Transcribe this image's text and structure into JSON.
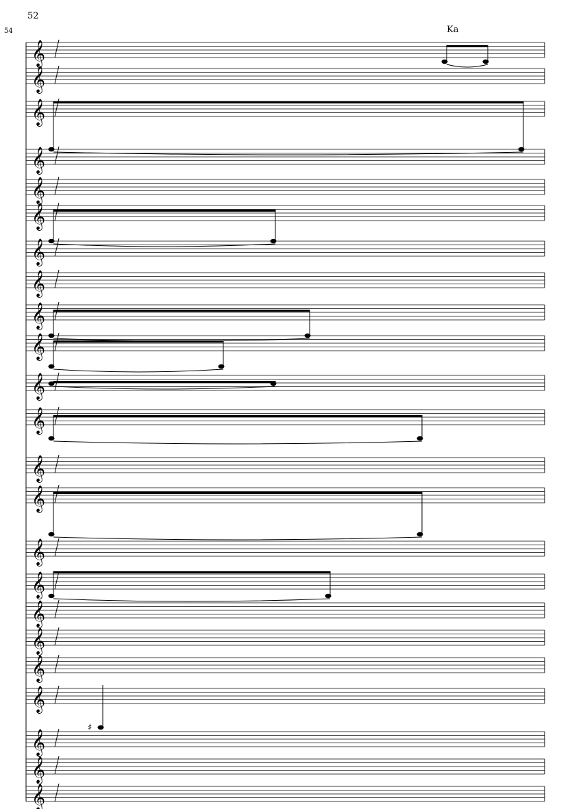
{
  "score": {
    "page_measure_number": "52",
    "system_measure_number": "54",
    "lyric": "Ka",
    "clef": "treble",
    "ink_color": "#000000"
  }
}
